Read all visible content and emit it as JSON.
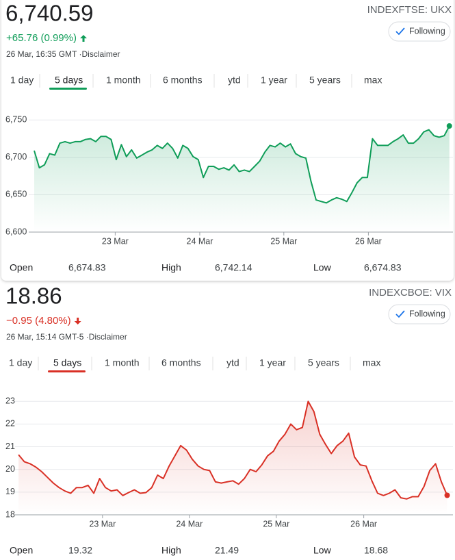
{
  "widgets": [
    {
      "price": "6,740.59",
      "change": "+65.76 (0.99%)",
      "direction": "up",
      "color": "#0f9d58",
      "timestamp": "26 Mar, 16:35 GMT ·Disclaimer",
      "symbol": "INDEXFTSE: UKX",
      "follow": "Following",
      "ranges": [
        "1 day",
        "5 days",
        "1 month",
        "6 months",
        "ytd",
        "1 year",
        "5 years",
        "max"
      ],
      "selected_range": 1,
      "stats": [
        {
          "label": "Open",
          "value": "6,674.83"
        },
        {
          "label": "High",
          "value": "6,742.14"
        },
        {
          "label": "Low",
          "value": "6,674.83"
        }
      ]
    },
    {
      "price": "18.86",
      "change": "−0.95 (4.80%)",
      "direction": "down",
      "color": "#d93025",
      "timestamp": "26 Mar, 15:14 GMT-5 ·Disclaimer",
      "symbol": "INDEXCBOE: VIX",
      "follow": "Following",
      "ranges": [
        "1 day",
        "5 days",
        "1 month",
        "6 months",
        "ytd",
        "1 year",
        "5 years",
        "max"
      ],
      "selected_range": 1,
      "stats": [
        {
          "label": "Open",
          "value": "19.32"
        },
        {
          "label": "High",
          "value": "21.49"
        },
        {
          "label": "Low",
          "value": "18.68"
        }
      ]
    }
  ],
  "chart_data": [
    {
      "type": "line",
      "color": "#0f9d58",
      "grid": true,
      "values": [
        6709,
        6686,
        6690,
        6705,
        6703,
        6719,
        6721,
        6719,
        6721,
        6721,
        6724,
        6725,
        6721,
        6728,
        6728,
        6724,
        6697,
        6717,
        6701,
        6710,
        6699,
        6703,
        6707,
        6710,
        6716,
        6712,
        6719,
        6712,
        6699,
        6716,
        6712,
        6701,
        6697,
        6673,
        6688,
        6688,
        6684,
        6686,
        6683,
        6690,
        6681,
        6683,
        6681,
        6688,
        6695,
        6707,
        6716,
        6714,
        6719,
        6714,
        6718,
        6705,
        6701,
        6699,
        6668,
        6643,
        6641,
        6639,
        6643,
        6646,
        6644,
        6641,
        6653,
        6666,
        6673,
        6673,
        6725,
        6716,
        6716,
        6716,
        6721,
        6725,
        6730,
        6719,
        6719,
        6725,
        6734,
        6737,
        6729,
        6727,
        6729,
        6742
      ],
      "xlim": [
        -1.07,
        81.7
      ],
      "xticks": [
        {
          "value": 15.8,
          "label": "23 Mar"
        },
        {
          "value": 32.3,
          "label": "24 Mar"
        },
        {
          "value": 48.7,
          "label": "25 Mar"
        },
        {
          "value": 65.2,
          "label": "26 Mar"
        }
      ],
      "ylim": [
        6600,
        6764
      ],
      "yticks": [
        {
          "value": 6600,
          "label": "6,600"
        },
        {
          "value": 6650,
          "label": "6,650"
        },
        {
          "value": 6700,
          "label": "6,700"
        },
        {
          "value": 6750,
          "label": "6,750"
        }
      ]
    },
    {
      "type": "line",
      "color": "#d93025",
      "grid": true,
      "values": [
        20.65,
        20.34,
        20.25,
        20.1,
        19.9,
        19.65,
        19.4,
        19.2,
        19.05,
        18.95,
        19.2,
        19.2,
        19.3,
        18.95,
        19.6,
        19.2,
        19.05,
        19.1,
        18.85,
        18.98,
        19.1,
        18.95,
        18.98,
        19.2,
        19.75,
        19.6,
        20.15,
        20.6,
        21.05,
        20.85,
        20.45,
        20.15,
        20.0,
        19.95,
        19.45,
        19.4,
        19.45,
        19.5,
        19.35,
        19.6,
        20.0,
        19.9,
        20.2,
        20.6,
        20.8,
        21.25,
        21.55,
        22.0,
        21.75,
        21.85,
        23.0,
        22.55,
        21.55,
        21.1,
        20.7,
        21.05,
        21.25,
        21.6,
        20.55,
        20.2,
        20.15,
        19.5,
        18.95,
        18.85,
        18.95,
        19.1,
        18.75,
        18.7,
        18.8,
        18.8,
        19.25,
        19.95,
        20.25,
        19.45,
        18.86
      ],
      "xlim": [
        -0.6,
        75
      ],
      "xticks": [
        {
          "value": 14.5,
          "label": "23 Mar"
        },
        {
          "value": 29.5,
          "label": "24 Mar"
        },
        {
          "value": 44.5,
          "label": "25 Mar"
        },
        {
          "value": 59.6,
          "label": "26 Mar"
        }
      ],
      "ylim": [
        18,
        23.4
      ],
      "yticks": [
        18,
        19,
        20,
        21,
        22,
        23
      ]
    }
  ]
}
